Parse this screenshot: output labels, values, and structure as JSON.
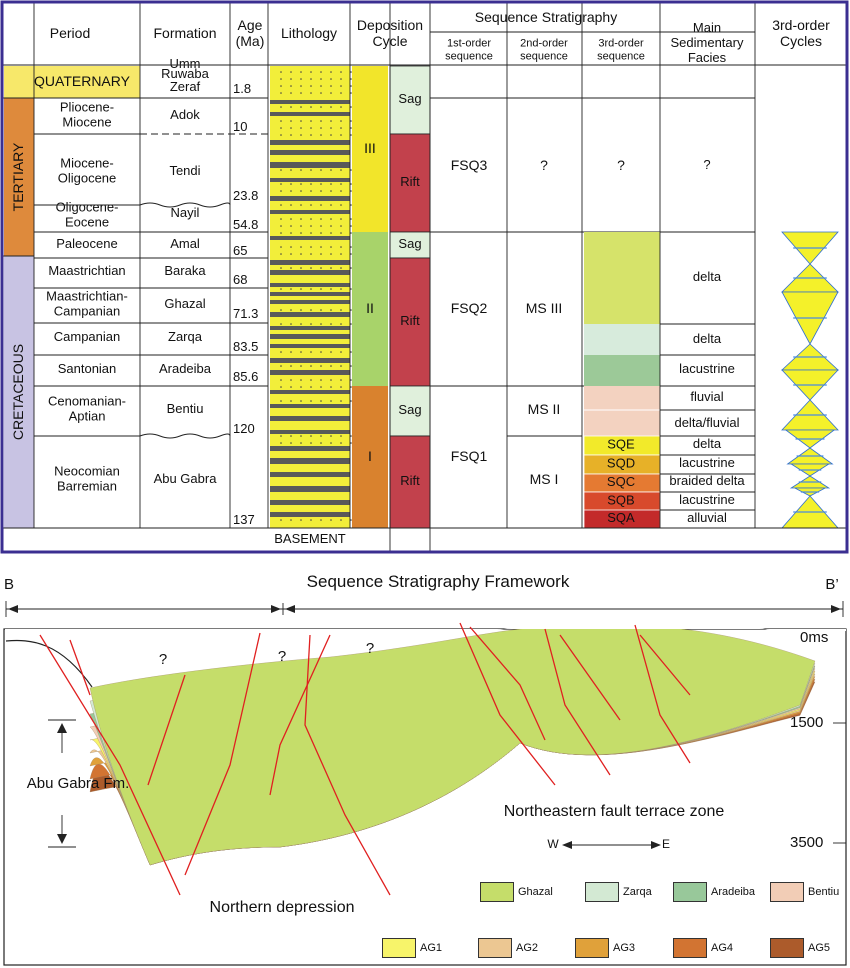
{
  "table": {
    "headers": {
      "period": "Period",
      "formation": "Formation",
      "age": "Age\n(Ma)",
      "lithology": "Lithology",
      "deposition": "Deposition\nCycle",
      "sequence": "Sequence Stratigraphy",
      "first": "1st-order\nsequence",
      "second": "2nd-order\nsequence",
      "third": "3rd-order\nsequence",
      "facies": "Main\nSedimentary\nFacies",
      "cycles": "3rd-order\nCycles"
    },
    "eras": [
      "QUATERNARY",
      "TERTIARY",
      "CRETACEOUS"
    ],
    "periods": [
      "Pliocene-\nMiocene",
      "Miocene-\nOligocene",
      "Oligocene-\nEocene",
      "Paleocene",
      "Maastrichtian",
      "Maastrichtian-\nCampanian",
      "Campanian",
      "Santonian",
      "Cenomanian-\nAptian",
      "Neocomian\nBarremian"
    ],
    "formations": [
      "Umm\nRuwaba",
      "Zeraf",
      "Adok",
      "Tendi",
      "Nayil",
      "Amal",
      "Baraka",
      "Ghazal",
      "Zarqa",
      "Aradeiba",
      "Bentiu",
      "Abu Gabra"
    ],
    "ages": [
      "1.8",
      "10",
      "23.8",
      "54.8",
      "65",
      "68",
      "71.3",
      "83.5",
      "85.6",
      "120",
      "137"
    ],
    "cycles": [
      "III",
      "II",
      "I"
    ],
    "cycle_types": [
      "Sag",
      "Rift",
      "Sag",
      "Rift",
      "Sag",
      "Rift"
    ],
    "first_order": [
      "FSQ3",
      "FSQ2",
      "FSQ1"
    ],
    "second_order": [
      "?",
      "MS III",
      "MS II",
      "MS I"
    ],
    "third_order": [
      "?",
      "SQE",
      "SQD",
      "SQC",
      "SQB",
      "SQA"
    ],
    "facies": [
      "?",
      "delta",
      "delta",
      "lacustrine",
      "fluvial",
      "delta/fluvial",
      "delta",
      "lacustrine",
      "braided delta",
      "lacustrine",
      "alluvial"
    ],
    "basement": "BASEMENT"
  },
  "section": {
    "left_label": "B",
    "right_label": "B’",
    "title": "Sequence Stratigraphy Framework",
    "question": "?",
    "depths": [
      "0ms",
      "1500",
      "3500"
    ],
    "formation_label": "Abu Gabra Fm.",
    "zone_label": "Northeastern  fault terrace zone",
    "depression_label": "Northern depression",
    "compass_w": "W",
    "compass_e": "E"
  },
  "legend": [
    {
      "label": "Ghazal",
      "color": "#c5dd6a"
    },
    {
      "label": "Zarqa",
      "color": "#d3e9d3"
    },
    {
      "label": "Aradeiba",
      "color": "#98c89a"
    },
    {
      "label": "Bentiu",
      "color": "#f2cdb6"
    },
    {
      "label": "AG1",
      "color": "#f7f46a"
    },
    {
      "label": "AG2",
      "color": "#ecc792"
    },
    {
      "label": "AG3",
      "color": "#e0a13a"
    },
    {
      "label": "AG4",
      "color": "#d27432"
    },
    {
      "label": "AG5",
      "color": "#ac5b2b"
    }
  ],
  "colors": {
    "frame": "#3b2f91",
    "quaternary": "#f7e86a",
    "tertiary": "#de8a3c",
    "cretaceous": "#c8c3e3",
    "lith_yellow": "#f2ee3a",
    "lith_dark": "#595959",
    "cycle3": "#f2e52a",
    "cycle2": "#a8d36a",
    "cycle1": "#d9822e",
    "sag": "#e0f0dc",
    "rift": "#c2414c",
    "seq_green": "#d6e36a",
    "seq_pale": "#d7ebdc",
    "seq_aradeiba": "#9cc998",
    "seq_bentiu": "#f3d2c0",
    "sqe": "#f2ea2a",
    "sqd": "#e7b128",
    "sqc": "#e57a32",
    "sqb": "#d84a2c",
    "sqa": "#c32a2a",
    "fault": "#e02020"
  }
}
